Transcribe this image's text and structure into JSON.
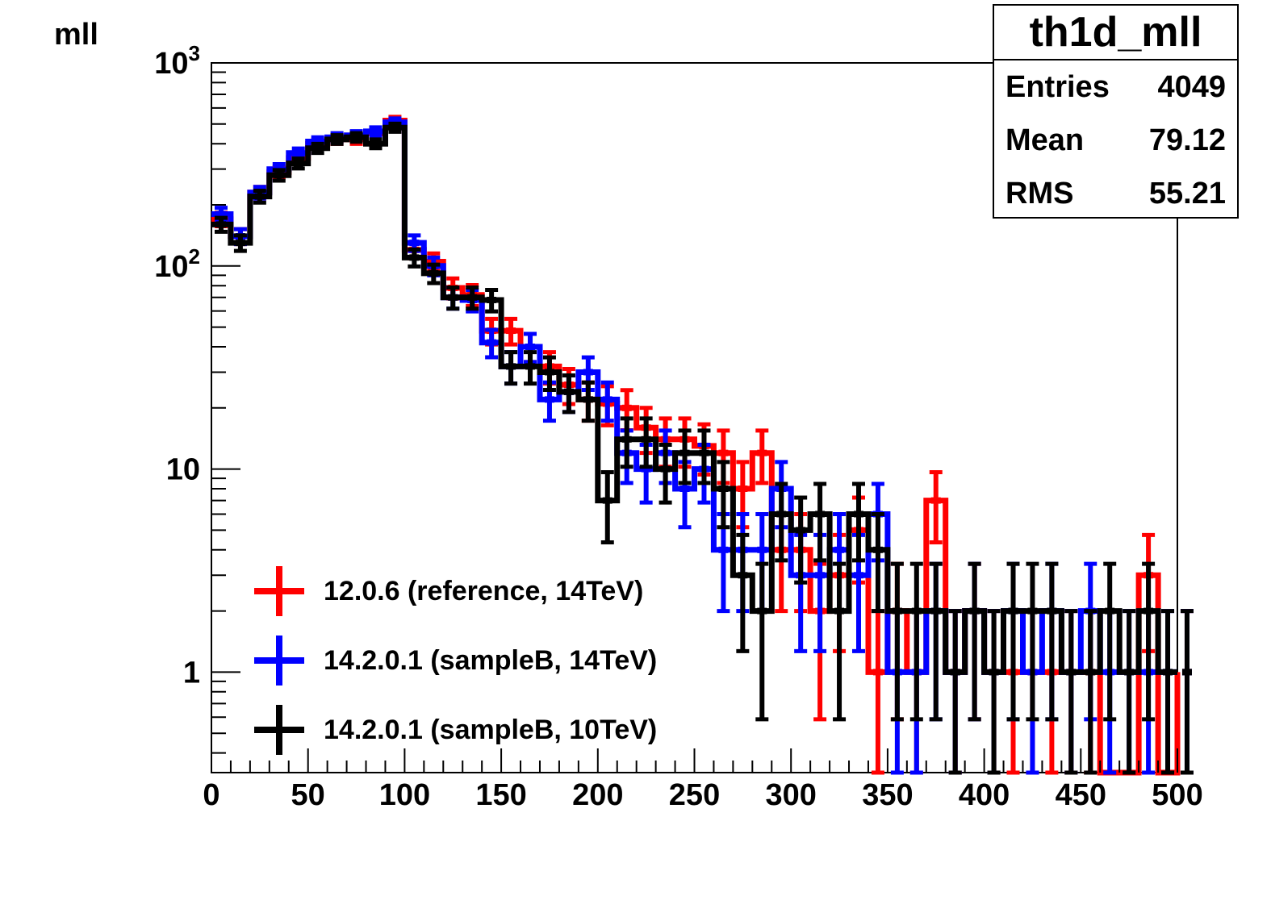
{
  "chart_data": {
    "type": "histogram",
    "ylabel": "mll",
    "y_scale": "log",
    "ylim": [
      0.32,
      1000
    ],
    "xlim": [
      0,
      500
    ],
    "bin_width": 10,
    "x_ticks": [
      "0",
      "50",
      "100",
      "150",
      "200",
      "250",
      "300",
      "350",
      "400",
      "450",
      "500"
    ],
    "y_ticks": [
      {
        "value": 1000,
        "base": "10",
        "exp": "3"
      },
      {
        "value": 100,
        "base": "10",
        "exp": "2"
      },
      {
        "value": 10,
        "base": "10",
        "exp": ""
      },
      {
        "value": 1,
        "base": "1",
        "exp": ""
      }
    ],
    "series": [
      {
        "name": "12.0.6 (reference, 14TeV)",
        "color": "#ff0000",
        "values": [
          170,
          140,
          230,
          290,
          340,
          400,
          420,
          420,
          450,
          520,
          120,
          105,
          78,
          72,
          48,
          48,
          40,
          32,
          26,
          22,
          21,
          20,
          16,
          14,
          14,
          13,
          12,
          8,
          12,
          4,
          4,
          2,
          3,
          5,
          1,
          2,
          1,
          7,
          1,
          2,
          1,
          1,
          1,
          1,
          1,
          1,
          0.3,
          0.3,
          3,
          0.3,
          1
        ]
      },
      {
        "name": "14.2.0.1 (sampleB, 14TeV)",
        "color": "#0000ff",
        "values": [
          180,
          140,
          230,
          300,
          360,
          410,
          430,
          440,
          460,
          510,
          130,
          100,
          70,
          68,
          42,
          32,
          40,
          22,
          24,
          30,
          22,
          12,
          10,
          12,
          8,
          10,
          4,
          4,
          4,
          8,
          3,
          3,
          4,
          3,
          6,
          1,
          1,
          2,
          1,
          2,
          1,
          2,
          1,
          2,
          1,
          2,
          1,
          1,
          1,
          1,
          1
        ]
      },
      {
        "name": "14.2.0.1 (sampleB, 10TeV)",
        "color": "#000000",
        "values": [
          160,
          130,
          220,
          280,
          320,
          380,
          420,
          430,
          400,
          480,
          110,
          92,
          70,
          70,
          68,
          32,
          32,
          30,
          24,
          22,
          7,
          14,
          14,
          10,
          12,
          12,
          8,
          3,
          2,
          6,
          5,
          6,
          2,
          6,
          4,
          2,
          2,
          2,
          1,
          2,
          1,
          2,
          2,
          2,
          1,
          1,
          2,
          1,
          2,
          1,
          1
        ]
      }
    ]
  },
  "stats_box": {
    "title": "th1d_mll",
    "rows": [
      {
        "label": "Entries",
        "value": "4049"
      },
      {
        "label": "Mean",
        "value": "79.12"
      },
      {
        "label": "RMS",
        "value": "55.21"
      }
    ]
  }
}
